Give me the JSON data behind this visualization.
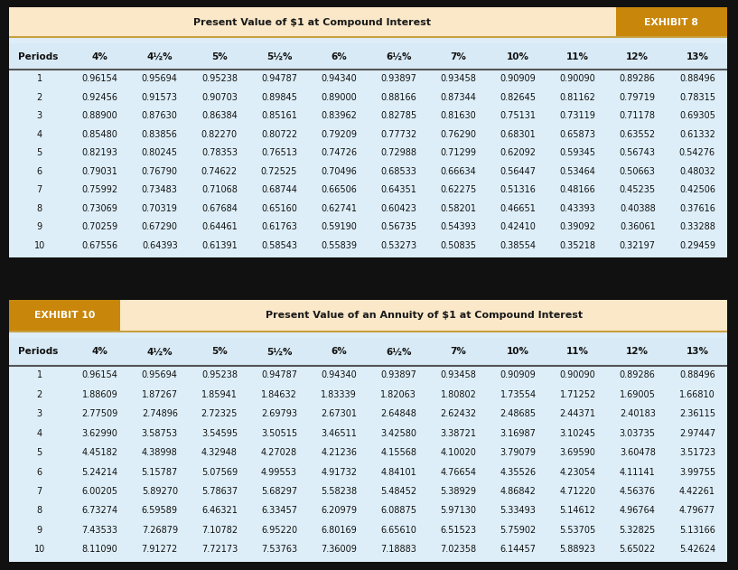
{
  "bg_color": "#111111",
  "table1": {
    "exhibit_label": "EXHIBIT 8",
    "title": "Present Value of $1 at Compound Interest",
    "header_bg": "#fae8c8",
    "exhibit_bg": "#c8860a",
    "table_header_bg": "#d8eaf5",
    "table_row_bg": "#ddeef8",
    "outer_border_color": "#c8a040",
    "columns": [
      "Periods",
      "4%",
      "4½%",
      "5%",
      "5½%",
      "6%",
      "6½%",
      "7%",
      "10%",
      "11%",
      "12%",
      "13%"
    ],
    "rows": [
      [
        1,
        0.96154,
        0.95694,
        0.95238,
        0.94787,
        0.9434,
        0.93897,
        0.93458,
        0.90909,
        0.9009,
        0.89286,
        0.88496
      ],
      [
        2,
        0.92456,
        0.91573,
        0.90703,
        0.89845,
        0.89,
        0.88166,
        0.87344,
        0.82645,
        0.81162,
        0.79719,
        0.78315
      ],
      [
        3,
        0.889,
        0.8763,
        0.86384,
        0.85161,
        0.83962,
        0.82785,
        0.8163,
        0.75131,
        0.73119,
        0.71178,
        0.69305
      ],
      [
        4,
        0.8548,
        0.83856,
        0.8227,
        0.80722,
        0.79209,
        0.77732,
        0.7629,
        0.68301,
        0.65873,
        0.63552,
        0.61332
      ],
      [
        5,
        0.82193,
        0.80245,
        0.78353,
        0.76513,
        0.74726,
        0.72988,
        0.71299,
        0.62092,
        0.59345,
        0.56743,
        0.54276
      ],
      [
        6,
        0.79031,
        0.7679,
        0.74622,
        0.72525,
        0.70496,
        0.68533,
        0.66634,
        0.56447,
        0.53464,
        0.50663,
        0.48032
      ],
      [
        7,
        0.75992,
        0.73483,
        0.71068,
        0.68744,
        0.66506,
        0.64351,
        0.62275,
        0.51316,
        0.48166,
        0.45235,
        0.42506
      ],
      [
        8,
        0.73069,
        0.70319,
        0.67684,
        0.6516,
        0.62741,
        0.60423,
        0.58201,
        0.46651,
        0.43393,
        0.40388,
        0.37616
      ],
      [
        9,
        0.70259,
        0.6729,
        0.64461,
        0.61763,
        0.5919,
        0.56735,
        0.54393,
        0.4241,
        0.39092,
        0.36061,
        0.33288
      ],
      [
        10,
        0.67556,
        0.64393,
        0.61391,
        0.58543,
        0.55839,
        0.53273,
        0.50835,
        0.38554,
        0.35218,
        0.32197,
        0.29459
      ]
    ]
  },
  "table2": {
    "exhibit_label": "EXHIBIT 10",
    "title": "Present Value of an Annuity of $1 at Compound Interest",
    "header_bg": "#fae8c8",
    "exhibit_bg": "#c8860a",
    "table_header_bg": "#d8eaf5",
    "table_row_bg": "#ddeef8",
    "outer_border_color": "#c8a040",
    "columns": [
      "Periods",
      "4%",
      "4½%",
      "5%",
      "5½%",
      "6%",
      "6½%",
      "7%",
      "10%",
      "11%",
      "12%",
      "13%"
    ],
    "rows": [
      [
        1,
        0.96154,
        0.95694,
        0.95238,
        0.94787,
        0.9434,
        0.93897,
        0.93458,
        0.90909,
        0.9009,
        0.89286,
        0.88496
      ],
      [
        2,
        1.88609,
        1.87267,
        1.85941,
        1.84632,
        1.83339,
        1.82063,
        1.80802,
        1.73554,
        1.71252,
        1.69005,
        1.6681
      ],
      [
        3,
        2.77509,
        2.74896,
        2.72325,
        2.69793,
        2.67301,
        2.64848,
        2.62432,
        2.48685,
        2.44371,
        2.40183,
        2.36115
      ],
      [
        4,
        3.6299,
        3.58753,
        3.54595,
        3.50515,
        3.46511,
        3.4258,
        3.38721,
        3.16987,
        3.10245,
        3.03735,
        2.97447
      ],
      [
        5,
        4.45182,
        4.38998,
        4.32948,
        4.27028,
        4.21236,
        4.15568,
        4.1002,
        3.79079,
        3.6959,
        3.60478,
        3.51723
      ],
      [
        6,
        5.24214,
        5.15787,
        5.07569,
        4.99553,
        4.91732,
        4.84101,
        4.76654,
        4.35526,
        4.23054,
        4.11141,
        3.99755
      ],
      [
        7,
        6.00205,
        5.8927,
        5.78637,
        5.68297,
        5.58238,
        5.48452,
        5.38929,
        4.86842,
        4.7122,
        4.56376,
        4.42261
      ],
      [
        8,
        6.73274,
        6.59589,
        6.46321,
        6.33457,
        6.20979,
        6.08875,
        5.9713,
        5.33493,
        5.14612,
        4.96764,
        4.79677
      ],
      [
        9,
        7.43533,
        7.26879,
        7.10782,
        6.9522,
        6.80169,
        6.6561,
        6.51523,
        5.75902,
        5.53705,
        5.32825,
        5.13166
      ],
      [
        10,
        8.1109,
        7.91272,
        7.72173,
        7.53763,
        7.36009,
        7.18883,
        7.02358,
        6.14457,
        5.88923,
        5.65022,
        5.42624
      ]
    ]
  }
}
